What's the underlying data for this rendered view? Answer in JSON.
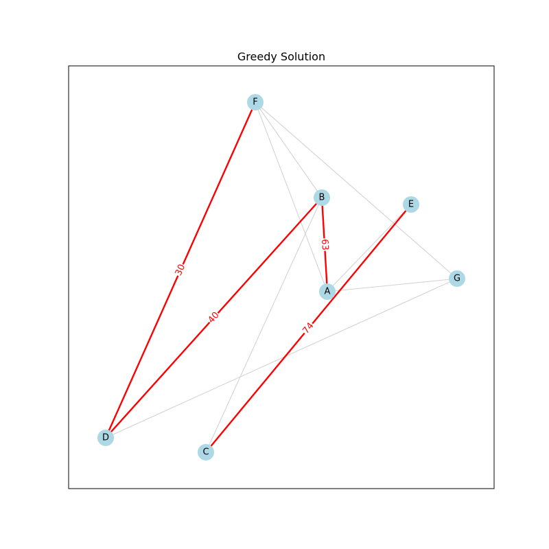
{
  "title": "Greedy Solution",
  "colors": {
    "node_fill": "#add8e6",
    "base_edge": "#d3d3d3",
    "selected_edge": "#ff0000",
    "frame": "#000000"
  },
  "nodes": [
    {
      "id": "A",
      "label": "A"
    },
    {
      "id": "B",
      "label": "B"
    },
    {
      "id": "C",
      "label": "C"
    },
    {
      "id": "D",
      "label": "D"
    },
    {
      "id": "E",
      "label": "E"
    },
    {
      "id": "F",
      "label": "F"
    },
    {
      "id": "G",
      "label": "G"
    }
  ],
  "edges": [
    {
      "source": "F",
      "target": "B",
      "selected": false
    },
    {
      "source": "F",
      "target": "A",
      "selected": false
    },
    {
      "source": "F",
      "target": "G",
      "selected": false
    },
    {
      "source": "B",
      "target": "C",
      "selected": false
    },
    {
      "source": "A",
      "target": "E",
      "selected": false
    },
    {
      "source": "A",
      "target": "G",
      "selected": false
    },
    {
      "source": "D",
      "target": "G",
      "selected": false
    },
    {
      "source": "F",
      "target": "D",
      "selected": true,
      "weight": "30"
    },
    {
      "source": "B",
      "target": "D",
      "selected": true,
      "weight": "40"
    },
    {
      "source": "B",
      "target": "A",
      "selected": true,
      "weight": "63"
    },
    {
      "source": "E",
      "target": "C",
      "selected": true,
      "weight": "74"
    }
  ]
}
